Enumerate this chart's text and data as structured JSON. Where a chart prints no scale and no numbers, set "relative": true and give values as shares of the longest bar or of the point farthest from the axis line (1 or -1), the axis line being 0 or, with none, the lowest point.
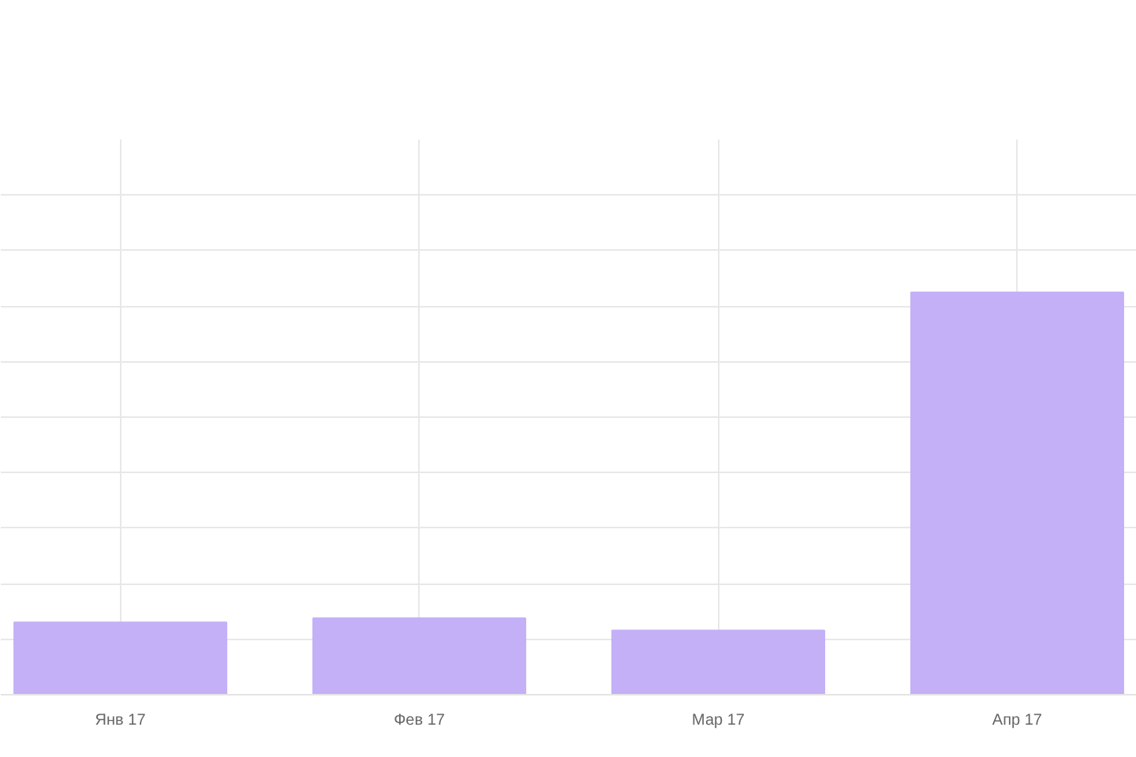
{
  "chart_data": {
    "type": "bar",
    "categories": [
      "Янв 17",
      "Фев 17",
      "Мар 17",
      "Апр 17"
    ],
    "values": [
      0.18,
      0.19,
      0.16,
      1
    ],
    "color": "#c4b0f7",
    "relative": true,
    "grid": true
  }
}
